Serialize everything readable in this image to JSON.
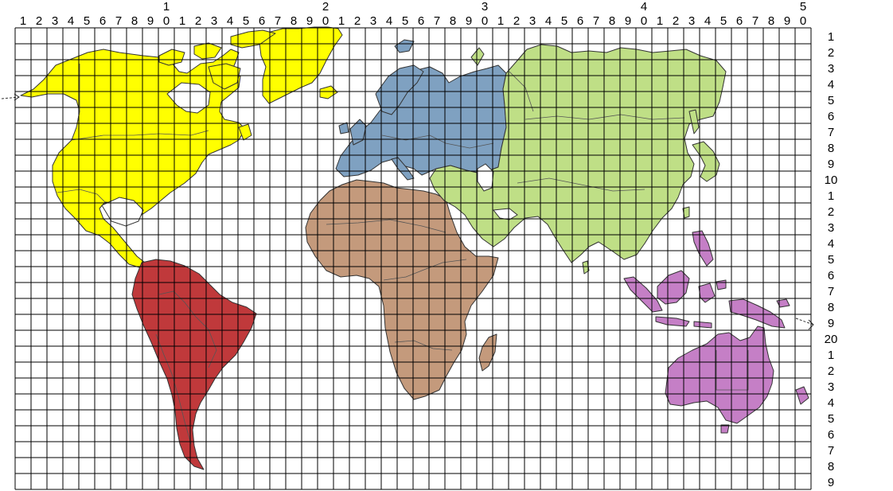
{
  "grid": {
    "columns": 50,
    "rows": 29,
    "top_units": [
      "1",
      "2",
      "3",
      "4",
      "5",
      "6",
      "7",
      "8",
      "9",
      "0",
      "1",
      "2",
      "3",
      "4",
      "5",
      "6",
      "7",
      "8",
      "9",
      "0",
      "1",
      "2",
      "3",
      "4",
      "5",
      "6",
      "7",
      "8",
      "9",
      "0",
      "1",
      "2",
      "3",
      "4",
      "5",
      "6",
      "7",
      "8",
      "9",
      "0",
      "1",
      "2",
      "3",
      "4",
      "5",
      "6",
      "7",
      "8",
      "9",
      "0"
    ],
    "top_tens": [
      {
        "col": 10,
        "label": "1"
      },
      {
        "col": 20,
        "label": "2"
      },
      {
        "col": 30,
        "label": "3"
      },
      {
        "col": 40,
        "label": "4"
      },
      {
        "col": 50,
        "label": "5"
      }
    ],
    "right_labels": [
      "1",
      "2",
      "3",
      "4",
      "5",
      "6",
      "7",
      "8",
      "9",
      "10",
      "1",
      "2",
      "3",
      "4",
      "5",
      "6",
      "7",
      "8",
      "9",
      "20",
      "1",
      "2",
      "3",
      "4",
      "5",
      "6",
      "7",
      "8",
      "9"
    ]
  },
  "continents": [
    {
      "id": "north-america",
      "color": "#ffff00"
    },
    {
      "id": "south-america",
      "color": "#c0393b"
    },
    {
      "id": "europe",
      "color": "#7fa1c1"
    },
    {
      "id": "africa",
      "color": "#c49a7c"
    },
    {
      "id": "asia",
      "color": "#bfdf86"
    },
    {
      "id": "oceania",
      "color": "#c57fc6"
    }
  ]
}
